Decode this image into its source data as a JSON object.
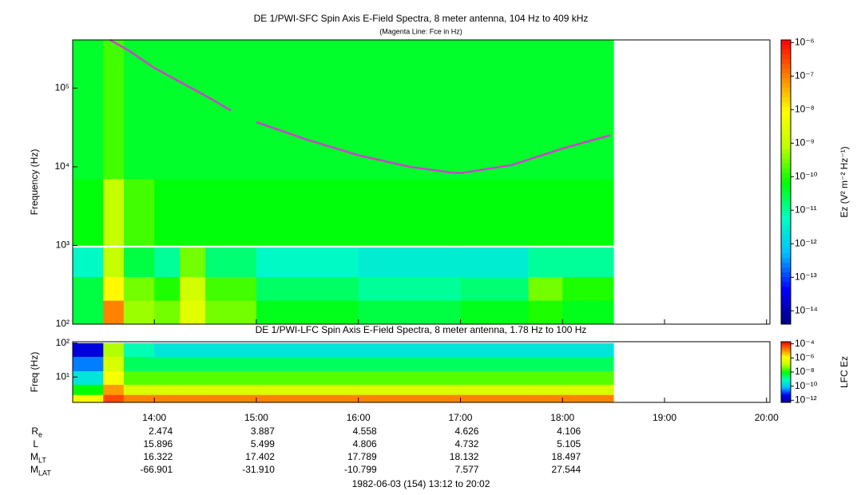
{
  "chart_data": [
    {
      "type": "heatmap",
      "title": "DE 1/PWI-SFC  Spin Axis E-Field Spectra, 8 meter antenna, 104 Hz to 409 kHz",
      "subtitle": "(Magenta Line: Fce in Hz)",
      "y_label": "Frequency (Hz)",
      "log_y": true,
      "xlim": [
        792,
        1202
      ],
      "ylim": [
        100,
        409000
      ],
      "yticks": [
        {
          "value": 100,
          "label": "10²"
        },
        {
          "value": 1000,
          "label": "10³"
        },
        {
          "value": 10000,
          "label": "10⁴"
        },
        {
          "value": 100000,
          "label": "10⁵"
        }
      ],
      "x": [
        792,
        810,
        822,
        840,
        855,
        870,
        900,
        960,
        1020,
        1060,
        1080,
        1110
      ],
      "y": [
        100,
        200,
        400,
        940,
        1000,
        7000,
        409000
      ],
      "z": [
        [
          3e-11,
          1e-07,
          5e-10,
          3e-10,
          3e-09,
          3e-10,
          5e-11,
          3e-11,
          5e-11,
          1e-10,
          5e-11
        ],
        [
          3e-11,
          1e-08,
          3e-10,
          1e-10,
          1.6e-09,
          1.6e-10,
          2e-11,
          1e-11,
          1.6e-11,
          3e-10,
          1e-10
        ],
        [
          5e-12,
          1e-09,
          3e-11,
          1e-11,
          3e-10,
          1.6e-11,
          5e-12,
          3e-12,
          3e-12,
          1e-11,
          1e-11
        ],
        [
          null,
          null,
          null,
          null,
          null,
          null,
          null,
          null,
          null,
          null,
          null
        ],
        [
          6e-11,
          1e-09,
          1.6e-10,
          6e-11,
          6e-11,
          6e-11,
          6e-11,
          6e-11,
          6e-11,
          6e-11,
          6e-11
        ],
        [
          4e-11,
          1.6e-10,
          4e-11,
          4e-11,
          4e-11,
          4e-11,
          4e-11,
          4e-11,
          4e-11,
          4e-11,
          4e-11
        ]
      ],
      "line": {
        "color": "#d040d0",
        "x": [
          814,
          825,
          840,
          870,
          885,
          893,
          900,
          930,
          960,
          990,
          1015,
          1020,
          1050,
          1080,
          1095,
          1108
        ],
        "y": [
          440000,
          300000,
          180000,
          80000,
          52000,
          null,
          37000,
          22000,
          14000,
          10000,
          8400,
          8300,
          10500,
          17000,
          21000,
          25000
        ]
      },
      "colorbar": {
        "label": "Ez (V² m⁻² Hz⁻¹)",
        "log": true,
        "lim": [
          4e-15,
          1.2e-06
        ],
        "colors": [
          "#000080",
          "#0000ff",
          "#00c0ff",
          "#00ffc0",
          "#00ff00",
          "#c0ff00",
          "#ffff00",
          "#ff8000",
          "#ff0000"
        ],
        "ticks": [
          {
            "value": 1e-06,
            "label": "10⁻⁶"
          },
          {
            "value": 1e-07,
            "label": "10⁻⁷"
          },
          {
            "value": 1e-08,
            "label": "10⁻⁸"
          },
          {
            "value": 1e-09,
            "label": "10⁻⁹"
          },
          {
            "value": 1e-10,
            "label": "10⁻¹⁰"
          },
          {
            "value": 1e-11,
            "label": "10⁻¹¹"
          },
          {
            "value": 1e-12,
            "label": "10⁻¹²"
          },
          {
            "value": 1e-13,
            "label": "10⁻¹³"
          },
          {
            "value": 1e-14,
            "label": "10⁻¹⁴"
          }
        ]
      }
    },
    {
      "type": "heatmap",
      "title": "DE 1/PWI-LFC  Spin Axis E-Field Spectra, 8 meter antenna, 1.78 Hz to 100 Hz",
      "y_label": "Freq (Hz)",
      "log_y": true,
      "xlim": [
        792,
        1202
      ],
      "xticks": [
        {
          "value": 840,
          "label": "14:00"
        },
        {
          "value": 900,
          "label": "15:00"
        },
        {
          "value": 960,
          "label": "16:00"
        },
        {
          "value": 1020,
          "label": "17:00"
        },
        {
          "value": 1080,
          "label": "18:00"
        },
        {
          "value": 1140,
          "label": "19:00"
        },
        {
          "value": 1200,
          "label": "20:00"
        }
      ],
      "ylim": [
        1.78,
        110
      ],
      "yticks": [
        {
          "value": 10,
          "label": "10¹"
        },
        {
          "value": 100,
          "label": "10²"
        }
      ],
      "x": [
        792,
        810,
        822,
        840,
        855,
        870,
        900,
        960,
        1020,
        1060,
        1080,
        1110
      ],
      "y": [
        1.78,
        3,
        6,
        15,
        40,
        100
      ],
      "z": [
        [
          1e-06,
          5e-05,
          1.6e-05,
          1.6e-05,
          1.6e-05,
          1.6e-05,
          1.6e-05,
          1.6e-05,
          1.6e-05,
          1.6e-05,
          1.6e-05
        ],
        [
          1e-08,
          1e-05,
          3e-07,
          3e-07,
          3e-07,
          3e-07,
          3e-07,
          3e-07,
          3e-07,
          3e-07,
          3e-07
        ],
        [
          3e-10,
          1e-06,
          3e-08,
          3e-08,
          3e-08,
          3e-08,
          3e-08,
          3e-08,
          3e-08,
          3e-08,
          3e-08
        ],
        [
          3e-11,
          3e-07,
          3e-09,
          3e-09,
          3e-09,
          3e-09,
          3e-09,
          3e-09,
          3e-09,
          3e-09,
          3e-09
        ],
        [
          3e-12,
          1e-07,
          1e-09,
          3e-10,
          3e-10,
          3e-10,
          3e-10,
          3e-10,
          3e-10,
          3e-10,
          3e-10
        ]
      ],
      "colorbar": {
        "label": "LFC Ez",
        "log": true,
        "lim": [
          5e-13,
          0.0002
        ],
        "colors": [
          "#000080",
          "#0000ff",
          "#00c0ff",
          "#00ffc0",
          "#00ff00",
          "#c0ff00",
          "#ffff00",
          "#ff8000",
          "#ff0000"
        ],
        "ticks": [
          {
            "value": 0.0001,
            "label": "10⁻⁴"
          },
          {
            "value": 1e-06,
            "label": "10⁻⁶"
          },
          {
            "value": 1e-08,
            "label": "10⁻⁸"
          },
          {
            "value": 1e-10,
            "label": "10⁻¹⁰"
          },
          {
            "value": 1e-12,
            "label": "10⁻¹²"
          }
        ]
      }
    }
  ],
  "ephemeris": {
    "rows": [
      {
        "label": "R",
        "sub": "e",
        "values": [
          "2.474",
          "3.887",
          "4.558",
          "4.626",
          "4.106"
        ]
      },
      {
        "label": "L",
        "sub": "",
        "values": [
          "15.896",
          "5.499",
          "4.806",
          "4.732",
          "5.105"
        ]
      },
      {
        "label": "M",
        "sub": "LT",
        "values": [
          "16.322",
          "17.402",
          "17.789",
          "18.132",
          "18.497"
        ]
      },
      {
        "label": "M",
        "sub": "LAT",
        "values": [
          "-66.901",
          "-31.910",
          "-10.799",
          "7.577",
          "27.544"
        ]
      }
    ]
  },
  "footer": "1982-06-03 (154) 13:12 to 20:02"
}
